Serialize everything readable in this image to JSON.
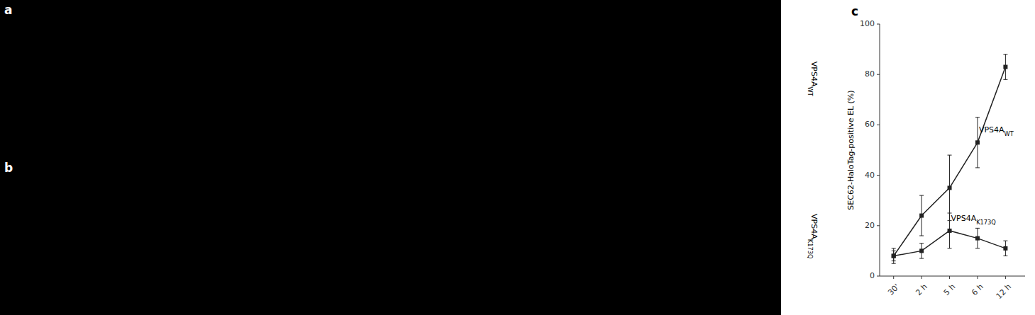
{
  "chart_data": {
    "type": "line",
    "panel_label": "c",
    "categories": [
      "30'",
      "2 h",
      "5 h",
      "6 h",
      "12 h"
    ],
    "series": [
      {
        "color": "#222222",
        "marker": "square",
        "values": [
          8,
          24,
          35,
          53,
          83
        ],
        "errors": [
          3,
          8,
          13,
          10,
          5
        ]
      },
      {
        "color": "#222222",
        "marker": "square",
        "values": [
          8,
          10,
          18,
          15,
          11
        ],
        "errors": [
          2,
          3,
          7,
          4,
          3
        ]
      }
    ],
    "annotations": [
      {
        "text": "VPS4A",
        "sub": "WT",
        "x": 3.05,
        "y": 57
      },
      {
        "text": "VPS4A",
        "sub": "K173Q",
        "x": 2.05,
        "y": 22
      }
    ],
    "y_label": "SEC62-HaloTag-positive EL (%)",
    "xlim": [
      -0.5,
      4.7
    ],
    "ylim": [
      0,
      100
    ],
    "yticks": [
      0,
      20,
      40,
      60,
      80,
      100
    ],
    "grid": false
  },
  "figure_panels": [
    {
      "label": "a",
      "row_label": {
        "text": "VPS4A",
        "sub": "WT"
      }
    },
    {
      "label": "b",
      "row_label": {
        "text": "VPS4A",
        "sub": "K173Q"
      }
    }
  ]
}
